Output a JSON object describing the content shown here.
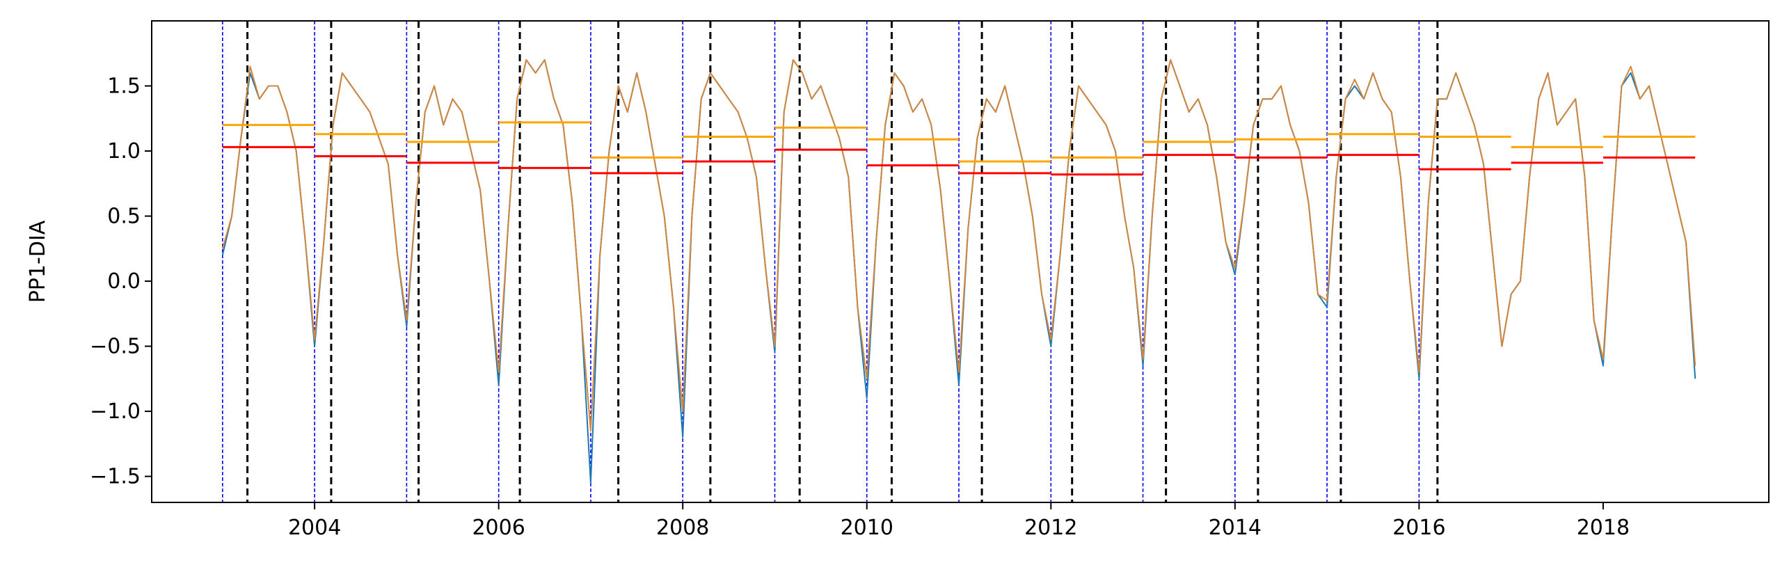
{
  "chart_data": {
    "type": "line",
    "ylabel": "PP1-DIA",
    "xlim": [
      2002.23,
      2019.8
    ],
    "ylim": [
      -1.7,
      2.0
    ],
    "xticks": [
      2004,
      2006,
      2008,
      2010,
      2012,
      2014,
      2016,
      2018
    ],
    "yticks": [
      {
        "value": -1.5,
        "label": "−1.5"
      },
      {
        "value": -1.0,
        "label": "−1.0"
      },
      {
        "value": -0.5,
        "label": "−0.5"
      },
      {
        "value": 0,
        "label": "0.0"
      },
      0.5,
      {
        "value": 1.0,
        "label": "1.0"
      },
      1.5
    ],
    "x": [
      2003,
      2003.1,
      2003.2,
      2003.3,
      2003.4,
      2003.5,
      2003.6,
      2003.7,
      2003.8,
      2003.9,
      2004,
      2004.1,
      2004.2,
      2004.3,
      2004.4,
      2004.5,
      2004.6,
      2004.7,
      2004.8,
      2004.9,
      2005,
      2005.1,
      2005.2,
      2005.3,
      2005.4,
      2005.5,
      2005.6,
      2005.7,
      2005.8,
      2005.9,
      2006,
      2006.1,
      2006.2,
      2006.3,
      2006.4,
      2006.5,
      2006.6,
      2006.7,
      2006.8,
      2006.9,
      2007,
      2007.1,
      2007.2,
      2007.3,
      2007.4,
      2007.5,
      2007.6,
      2007.7,
      2007.8,
      2007.9,
      2008,
      2008.1,
      2008.2,
      2008.3,
      2008.4,
      2008.5,
      2008.6,
      2008.7,
      2008.8,
      2008.9,
      2009,
      2009.1,
      2009.2,
      2009.3,
      2009.4,
      2009.5,
      2009.6,
      2009.7,
      2009.8,
      2009.9,
      2010,
      2010.1,
      2010.2,
      2010.3,
      2010.4,
      2010.5,
      2010.6,
      2010.7,
      2010.8,
      2010.9,
      2011,
      2011.1,
      2011.2,
      2011.3,
      2011.4,
      2011.5,
      2011.6,
      2011.7,
      2011.8,
      2011.9,
      2012,
      2012.1,
      2012.2,
      2012.3,
      2012.4,
      2012.5,
      2012.6,
      2012.7,
      2012.8,
      2012.9,
      2013,
      2013.1,
      2013.2,
      2013.3,
      2013.4,
      2013.5,
      2013.6,
      2013.7,
      2013.8,
      2013.9,
      2014,
      2014.1,
      2014.2,
      2014.3,
      2014.4,
      2014.5,
      2014.6,
      2014.7,
      2014.8,
      2014.9,
      2015,
      2015.1,
      2015.2,
      2015.3,
      2015.4,
      2015.5,
      2015.6,
      2015.7,
      2015.8,
      2015.9,
      2016,
      2016.1,
      2016.2,
      2016.3,
      2016.4,
      2016.5,
      2016.6,
      2016.7,
      2016.8,
      2016.9,
      2017,
      2017.1,
      2017.2,
      2017.3,
      2017.4,
      2017.5,
      2017.6,
      2017.7,
      2017.8,
      2017.9,
      2018,
      2018.1,
      2018.2,
      2018.3,
      2018.4,
      2018.5,
      2018.6,
      2018.7,
      2018.8,
      2018.9,
      2019
    ],
    "series": [
      {
        "color": "#1f77b4",
        "values": [
          0.2,
          0.5,
          1.1,
          1.6,
          1.4,
          1.5,
          1.5,
          1.3,
          1.0,
          0.3,
          -0.5,
          0.3,
          1.2,
          1.6,
          1.5,
          1.4,
          1.3,
          1.1,
          0.9,
          0.2,
          -0.35,
          0.6,
          1.3,
          1.5,
          1.2,
          1.4,
          1.3,
          1.0,
          0.7,
          0.0,
          -0.8,
          0.4,
          1.4,
          1.7,
          1.6,
          1.7,
          1.4,
          1.2,
          0.6,
          -0.3,
          -1.55,
          0.2,
          1.0,
          1.5,
          1.3,
          1.6,
          1.3,
          0.9,
          0.5,
          -0.2,
          -1.2,
          0.5,
          1.4,
          1.6,
          1.5,
          1.4,
          1.3,
          1.1,
          0.8,
          0.1,
          -0.55,
          1.3,
          1.7,
          1.6,
          1.4,
          1.5,
          1.3,
          1.1,
          0.8,
          -0.2,
          -0.9,
          0.3,
          1.2,
          1.6,
          1.5,
          1.3,
          1.4,
          1.2,
          0.7,
          0.0,
          -0.8,
          0.4,
          1.1,
          1.4,
          1.3,
          1.5,
          1.2,
          0.9,
          0.5,
          -0.1,
          -0.5,
          0.2,
          1.0,
          1.5,
          1.4,
          1.3,
          1.2,
          1.0,
          0.5,
          0.1,
          -0.65,
          0.5,
          1.4,
          1.7,
          1.5,
          1.3,
          1.4,
          1.2,
          0.8,
          0.3,
          0.05,
          0.6,
          1.2,
          1.4,
          1.4,
          1.5,
          1.2,
          1.0,
          0.6,
          -0.1,
          -0.2,
          0.8,
          1.4,
          1.5,
          1.4,
          1.6,
          1.4,
          1.3,
          0.8,
          0.0,
          -0.75,
          0.6,
          1.4,
          1.4,
          1.6,
          1.4,
          1.2,
          0.9,
          0.2,
          -0.5,
          -0.1,
          0.0,
          0.8,
          1.4,
          1.6,
          1.2,
          1.3,
          1.4,
          0.8,
          -0.3,
          -0.65,
          0.5,
          1.5,
          1.6,
          1.4,
          1.5,
          1.2,
          0.9,
          0.6,
          0.3,
          -0.75
        ]
      },
      {
        "color": "#d2873d",
        "values": [
          0.25,
          0.5,
          1.1,
          1.65,
          1.4,
          1.5,
          1.5,
          1.3,
          1.0,
          0.3,
          -0.45,
          0.3,
          1.2,
          1.6,
          1.5,
          1.4,
          1.3,
          1.1,
          0.9,
          0.2,
          -0.3,
          0.6,
          1.3,
          1.5,
          1.2,
          1.4,
          1.3,
          1.0,
          0.7,
          0.0,
          -0.7,
          0.4,
          1.4,
          1.7,
          1.6,
          1.7,
          1.4,
          1.2,
          0.6,
          -0.3,
          -1.15,
          0.2,
          1.0,
          1.5,
          1.3,
          1.6,
          1.3,
          0.9,
          0.5,
          -0.2,
          -1.0,
          0.5,
          1.4,
          1.6,
          1.5,
          1.4,
          1.3,
          1.1,
          0.8,
          0.1,
          -0.5,
          1.3,
          1.7,
          1.6,
          1.4,
          1.5,
          1.3,
          1.1,
          0.8,
          -0.2,
          -0.75,
          0.3,
          1.2,
          1.6,
          1.5,
          1.3,
          1.4,
          1.2,
          0.7,
          0.0,
          -0.7,
          0.4,
          1.1,
          1.4,
          1.3,
          1.5,
          1.2,
          0.9,
          0.5,
          -0.1,
          -0.45,
          0.2,
          1.0,
          1.5,
          1.4,
          1.3,
          1.2,
          1.0,
          0.5,
          0.1,
          -0.6,
          0.5,
          1.4,
          1.7,
          1.5,
          1.3,
          1.4,
          1.2,
          0.8,
          0.3,
          0.1,
          0.6,
          1.2,
          1.4,
          1.4,
          1.5,
          1.2,
          1.0,
          0.6,
          -0.1,
          -0.15,
          0.8,
          1.4,
          1.55,
          1.4,
          1.6,
          1.4,
          1.3,
          0.8,
          0.0,
          -0.7,
          0.6,
          1.4,
          1.4,
          1.6,
          1.4,
          1.2,
          0.9,
          0.2,
          -0.5,
          -0.1,
          0.0,
          0.8,
          1.4,
          1.6,
          1.2,
          1.3,
          1.4,
          0.8,
          -0.3,
          -0.6,
          0.5,
          1.5,
          1.65,
          1.4,
          1.5,
          1.2,
          0.9,
          0.6,
          0.3,
          -0.65
        ]
      }
    ],
    "years": [
      2003,
      2004,
      2005,
      2006,
      2007,
      2008,
      2009,
      2010,
      2011,
      2012,
      2013,
      2014,
      2015,
      2016,
      2017,
      2018
    ],
    "annual_means": [
      {
        "color": "#ffa500",
        "values": [
          1.2,
          1.13,
          1.07,
          1.22,
          0.95,
          1.11,
          1.18,
          1.09,
          0.92,
          0.95,
          1.07,
          1.09,
          1.13,
          1.11,
          1.03,
          1.11
        ]
      },
      {
        "color": "#ff0000",
        "values": [
          1.03,
          0.96,
          0.91,
          0.87,
          0.83,
          0.92,
          1.01,
          0.89,
          0.83,
          0.82,
          0.97,
          0.95,
          0.97,
          0.86,
          0.91,
          0.95
        ]
      }
    ],
    "vlines": [
      {
        "color": "#0000ff",
        "x": [
          2003,
          2004,
          2005,
          2006,
          2007,
          2008,
          2009,
          2010,
          2011,
          2012,
          2013,
          2014,
          2015,
          2016
        ]
      },
      {
        "color": "#000000",
        "x": [
          2003.27,
          2004.18,
          2005.13,
          2006.23,
          2007.3,
          2008.3,
          2009.27,
          2010.27,
          2011.25,
          2012.23,
          2013.25,
          2014.25,
          2015.15,
          2016.2
        ]
      }
    ]
  }
}
